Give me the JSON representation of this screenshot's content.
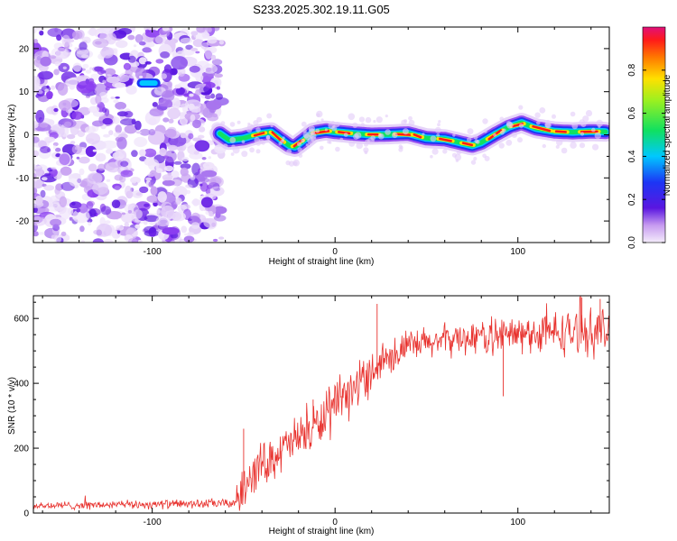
{
  "title": "S233.2025.302.19.11.G05",
  "colors": {
    "signal_line": "#e8322e",
    "frame": "#000000",
    "blob": "#8a3cf0",
    "blob_dark": "#5a16e0"
  },
  "chart_data": [
    {
      "id": "spectrogram",
      "type": "heatmap",
      "xlabel": "Height of straight line (km)",
      "ylabel": "Frequency (Hz)",
      "xlim": [
        -165,
        150
      ],
      "ylim": [
        -25,
        25
      ],
      "xticks": [
        -100,
        0,
        100
      ],
      "xtick_labels": [
        "-100",
        "0",
        "100"
      ],
      "yticks": [
        -20,
        -10,
        0,
        10,
        20
      ],
      "ytick_labels": [
        "-20",
        "-10",
        "0",
        "10",
        "20"
      ],
      "noise_region_x": [
        -165,
        -62
      ],
      "feature_line": {
        "x": [
          -63,
          -58,
          -50,
          -42,
          -35,
          -30,
          -25,
          -22,
          -18,
          -12,
          -5,
          0,
          10,
          20,
          30,
          40,
          50,
          60,
          70,
          75,
          80,
          88,
          95,
          102,
          110,
          120,
          130,
          140,
          148
        ],
        "freq": [
          0.3,
          -1.2,
          -0.8,
          0.2,
          0.6,
          -1.0,
          -2.5,
          -2.8,
          -1.5,
          0.5,
          1.0,
          0.7,
          0.3,
          0.0,
          0.1,
          0.3,
          -0.8,
          -1.0,
          -2.0,
          -2.5,
          -1.8,
          0.2,
          1.8,
          2.8,
          1.5,
          0.8,
          0.6,
          0.8,
          0.7
        ]
      },
      "isolated_feature": {
        "x": [
          -107,
          -97
        ],
        "freq": 12
      },
      "colorbar": {
        "label": "Normalized spectral amplitude",
        "range": [
          0,
          1
        ],
        "ticks": [
          0.0,
          0.2,
          0.4,
          0.6,
          0.8
        ],
        "tick_labels": [
          "0.0",
          "0.2",
          "0.4",
          "0.6",
          "0.8"
        ]
      }
    },
    {
      "id": "snr",
      "type": "line",
      "xlabel": "Height of straight line (km)",
      "ylabel": "SNR (10 * v/v)",
      "xlim": [
        -165,
        150
      ],
      "ylim": [
        0,
        670
      ],
      "xticks": [
        -100,
        0,
        100
      ],
      "xtick_labels": [
        "-100",
        "0",
        "100"
      ],
      "yticks": [
        0,
        200,
        400,
        600
      ],
      "ytick_labels": [
        "0",
        "200",
        "400",
        "600"
      ],
      "trend": {
        "x": [
          -165,
          -55,
          -52,
          -48,
          -40,
          -30,
          -20,
          -10,
          0,
          10,
          20,
          30,
          40,
          60,
          80,
          100,
          120,
          150
        ],
        "mean": [
          22,
          30,
          60,
          110,
          150,
          190,
          230,
          270,
          320,
          380,
          440,
          490,
          510,
          535,
          545,
          550,
          555,
          560
        ],
        "spread": [
          10,
          12,
          60,
          60,
          55,
          55,
          60,
          60,
          65,
          60,
          55,
          50,
          45,
          40,
          45,
          50,
          55,
          60
        ]
      },
      "peak_markers": [
        {
          "x": -50,
          "value": 260
        },
        {
          "x": -12,
          "value": 350
        },
        {
          "x": 23,
          "value": 645
        },
        {
          "x": 135,
          "value": 665
        },
        {
          "x": 145,
          "value": 660
        },
        {
          "x": 92,
          "value": 360
        }
      ]
    }
  ]
}
